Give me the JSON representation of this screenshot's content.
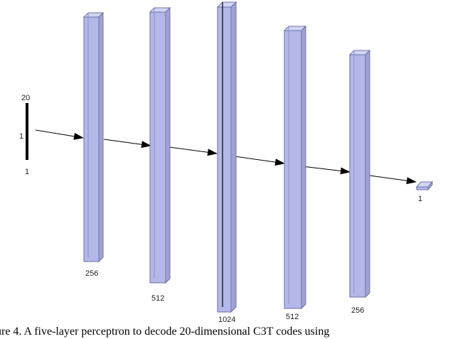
{
  "input": {
    "size_top": "20",
    "size_mid": "1",
    "size_bottom": "1"
  },
  "layers": [
    {
      "label": "256"
    },
    {
      "label": "512"
    },
    {
      "label": "1024"
    },
    {
      "label": "512"
    },
    {
      "label": "256"
    }
  ],
  "output": {
    "label": "1"
  },
  "caption": "gure 4.   A five-layer perceptron to decode 20-dimensional C3T codes using",
  "colors": {
    "layer_fill": "#b4b8e8",
    "layer_stroke": "#6e72a4",
    "arrow": "#000000"
  }
}
